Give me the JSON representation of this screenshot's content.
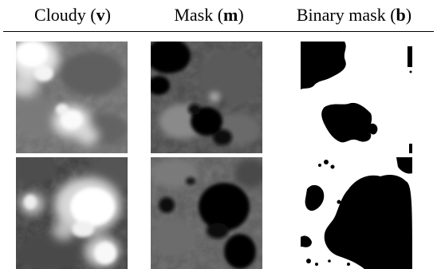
{
  "figure": {
    "columns": [
      {
        "prefix": "Cloudy (",
        "symbol": "v",
        "suffix": ")"
      },
      {
        "prefix": "Mask (",
        "symbol": "m",
        "suffix": ")"
      },
      {
        "prefix": "Binary mask (",
        "symbol": "b",
        "suffix": ")"
      }
    ],
    "rows": [
      {
        "cells": [
          "cloudy-image",
          "soft-mask",
          "binary-mask"
        ]
      },
      {
        "cells": [
          "cloudy-image",
          "soft-mask",
          "binary-mask"
        ]
      }
    ]
  }
}
